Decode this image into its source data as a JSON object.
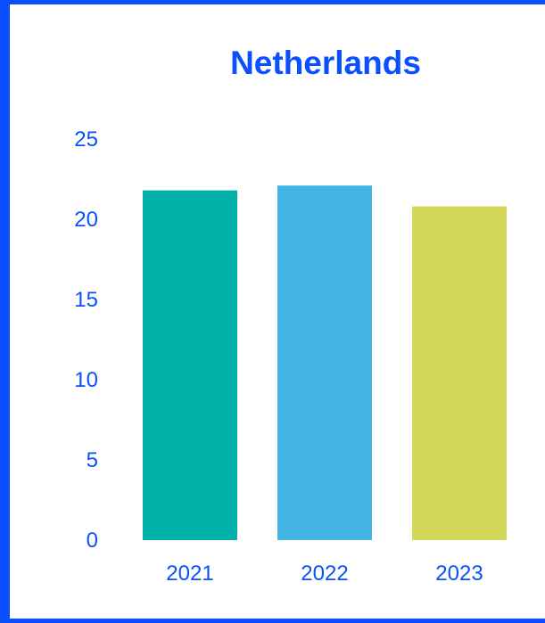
{
  "chart_data": {
    "type": "bar",
    "title": "Netherlands",
    "categories": [
      "2021",
      "2022",
      "2023"
    ],
    "values": [
      21.8,
      22.1,
      20.8
    ],
    "colors": [
      "#00b2aa",
      "#42b5e5",
      "#d4d85a"
    ],
    "yticks": [
      0,
      5,
      10,
      15,
      20,
      25
    ],
    "ylim": [
      0,
      25
    ],
    "grid": false,
    "text_color": "#0a50ff",
    "frame_color": "#0a4fff"
  }
}
